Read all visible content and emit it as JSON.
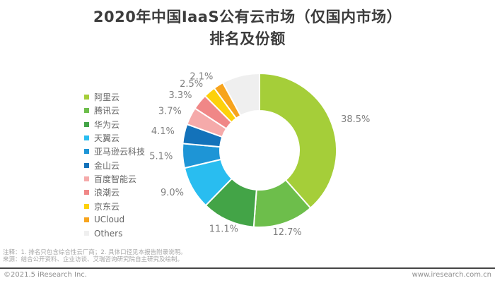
{
  "title": {
    "line1": "2020年中国IaaS公有云市场（仅国内市场）",
    "line2": "排名及份额"
  },
  "chart_data": {
    "type": "pie",
    "subtype": "donut",
    "title": "2020年中国IaaS公有云市场（仅国内市场）排名及份额",
    "legend_position": "left",
    "start_angle_deg": 0,
    "direction": "clockwise",
    "units": "percent",
    "series": [
      {
        "name": "阿里云",
        "value": 38.5,
        "label": "38.5%",
        "color": "#A5CE39"
      },
      {
        "name": "腾讯云",
        "value": 12.7,
        "label": "12.7%",
        "color": "#6DBE4B"
      },
      {
        "name": "华为云",
        "value": 11.1,
        "label": "11.1%",
        "color": "#43A447"
      },
      {
        "name": "天翼云",
        "value": 9.0,
        "label": "9.0%",
        "color": "#29BDF0"
      },
      {
        "name": "亚马逊云科技",
        "value": 5.1,
        "label": "5.1%",
        "color": "#1E95D6"
      },
      {
        "name": "金山云",
        "value": 4.1,
        "label": "4.1%",
        "color": "#1372BA"
      },
      {
        "name": "百度智能云",
        "value": 3.7,
        "label": "3.7%",
        "color": "#F5AAAA"
      },
      {
        "name": "浪潮云",
        "value": 3.3,
        "label": "3.3%",
        "color": "#F08787"
      },
      {
        "name": "京东云",
        "value": 2.5,
        "label": "2.5%",
        "color": "#FDD10A"
      },
      {
        "name": "UCloud",
        "value": 2.1,
        "label": "2.1%",
        "color": "#F7A41D"
      },
      {
        "name": "Others",
        "value": 7.9,
        "label": "",
        "color": "#EFEFEF"
      }
    ],
    "label_color": "#7F7F7F",
    "slice_gap_color": "#FFFFFF"
  },
  "notes": {
    "line1": "注释：1. 排名只包含综合性云厂商；2. 具体口径见本报告附录说明。",
    "line2": "来源：结合公开资料、企业访谈、艾瑞咨询研究院自主研究及绘制。"
  },
  "footer": {
    "copyright": "©2021.5 iResearch Inc.",
    "website": "www.iresearch.com.cn"
  }
}
